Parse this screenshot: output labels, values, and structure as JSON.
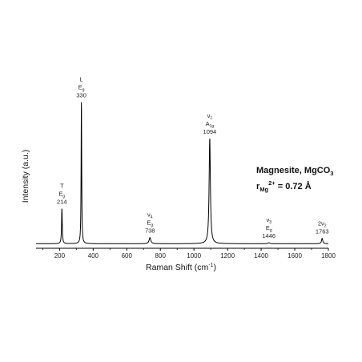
{
  "chart_data": {
    "type": "line",
    "xlabel": "Raman Shift (cm",
    "xlabel_sup": "-1",
    "xlabel_end": ")",
    "ylabel": "Intensity (a.u.)",
    "xlim": [
      60,
      1800
    ],
    "ylim": [
      0,
      1.0
    ],
    "x_ticks": [
      200,
      400,
      600,
      800,
      1000,
      1200,
      1400,
      1600,
      1800
    ],
    "grid": false,
    "baseline": 0.03,
    "peaks": [
      {
        "x": 214,
        "height": 0.23,
        "width": 5
      },
      {
        "x": 330,
        "height": 0.93,
        "width": 4
      },
      {
        "x": 738,
        "height": 0.04,
        "width": 12
      },
      {
        "x": 1094,
        "height": 0.69,
        "width": 9
      },
      {
        "x": 1446,
        "height": 0.006,
        "width": 12
      },
      {
        "x": 1763,
        "height": 0.035,
        "width": 9
      }
    ],
    "peak_labels": [
      {
        "x": 214,
        "line1": "T",
        "line1_sub": "",
        "line2": "E",
        "line2_sub": "g",
        "wavenumber": "214"
      },
      {
        "x": 330,
        "line1": "L",
        "line1_sub": "",
        "line2": "E",
        "line2_sub": "g",
        "wavenumber": "330"
      },
      {
        "x": 738,
        "line1": "ν",
        "line1_sub": "4",
        "line2": "E",
        "line2_sub": "g",
        "wavenumber": "738"
      },
      {
        "x": 1094,
        "line1": "ν",
        "line1_sub": "1",
        "line2": "A",
        "line2_sub": "1g",
        "wavenumber": "1094"
      },
      {
        "x": 1446,
        "line1": "ν",
        "line1_sub": "3",
        "line2": "E",
        "line2_sub": "g",
        "wavenumber": "1446"
      },
      {
        "x": 1763,
        "line1": "2ν",
        "line1_sub": "2",
        "line2": "",
        "line2_sub": "",
        "wavenumber": "1763"
      }
    ],
    "annotation": {
      "mineral": "Magnesite, MgCO",
      "mineral_sub": "3",
      "radius_r": "r",
      "radius_ion": "Mg",
      "radius_charge": "2+",
      "radius_value": " = 0.72 Å"
    },
    "colors": {
      "line": "#000000",
      "axis": "#000000"
    }
  }
}
